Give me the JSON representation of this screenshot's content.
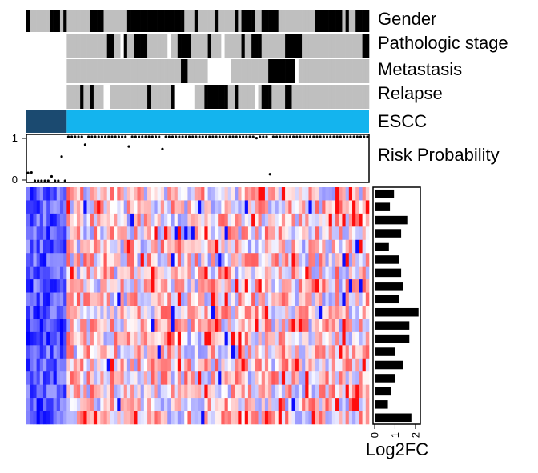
{
  "chart_data": {
    "type": "heatmap",
    "n_samples": 102,
    "n_genes": 18,
    "annotation_tracks": [
      {
        "key": "gender",
        "label": "Gender"
      },
      {
        "key": "stage",
        "label": "Pathologic stage"
      },
      {
        "key": "metastasis",
        "label": "Metastasis"
      },
      {
        "key": "relapse",
        "label": "Relapse"
      }
    ],
    "group_track": {
      "label": "ESCC",
      "normal_count": 12,
      "tumor_count": 90,
      "colors": {
        "normal": "#1b4a70",
        "tumor": "#14b4ee"
      }
    },
    "annotation_colors": {
      "black": "#000000",
      "gray": "#bfbfbf",
      "white": "#ffffff"
    },
    "risk": {
      "label": "Risk Probability",
      "ylim": [
        0,
        1
      ],
      "yticks": [
        "0",
        "1"
      ],
      "values": [
        0.18,
        0.19,
        0.0,
        0.0,
        0.0,
        0.0,
        0.0,
        0.1,
        0.0,
        0.0,
        0.55,
        0.0,
        1.0,
        1.0,
        1.0,
        1.0,
        1.0,
        0.82,
        1.0,
        1.0,
        1.0,
        1.0,
        1.0,
        1.0,
        1.0,
        1.0,
        1.0,
        1.0,
        1.0,
        1.0,
        0.78,
        1.0,
        1.0,
        1.0,
        1.0,
        1.0,
        1.0,
        1.0,
        1.0,
        1.0,
        0.72,
        1.0,
        1.0,
        1.0,
        1.0,
        1.0,
        1.0,
        1.0,
        1.0,
        1.0,
        1.0,
        1.0,
        1.0,
        1.0,
        1.0,
        1.0,
        1.0,
        1.0,
        1.0,
        1.0,
        1.0,
        1.0,
        1.0,
        1.0,
        1.0,
        1.0,
        1.0,
        1.0,
        0.97,
        1.0,
        1.0,
        1.0,
        0.15,
        1.0,
        1.0,
        1.0,
        1.0,
        1.0,
        1.0,
        1.0,
        1.0,
        1.0,
        1.0,
        1.0,
        1.0,
        1.0,
        1.0,
        1.0,
        1.0,
        1.0,
        1.0,
        1.0,
        1.0,
        1.0,
        1.0,
        1.0,
        1.0,
        1.0,
        1.0,
        1.0,
        1.0,
        1.0
      ]
    },
    "log2fc": {
      "label": "Log2FC",
      "xlim": [
        0,
        2.2
      ],
      "xticks": [
        "0",
        "1",
        "2"
      ],
      "values": [
        0.95,
        0.75,
        1.6,
        1.3,
        0.7,
        1.2,
        1.3,
        1.4,
        1.2,
        2.15,
        1.7,
        1.7,
        1.0,
        1.4,
        1.0,
        0.8,
        0.65,
        1.8
      ]
    },
    "heatmap_colorscale": {
      "low": "#0000ff",
      "mid": "#ffffff",
      "high": "#ff0000"
    }
  }
}
